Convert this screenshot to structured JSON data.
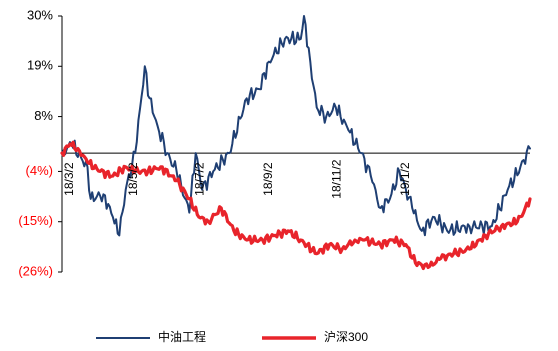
{
  "chart_data": {
    "type": "line",
    "title": "",
    "xlabel": "",
    "ylabel": "",
    "colors": {
      "positive_tick": "#000000",
      "negative_tick": "#ff0000",
      "axis": "#000000"
    },
    "y_ticks": [
      {
        "value": 30,
        "label": "30%",
        "negative": false
      },
      {
        "value": 19,
        "label": "19%",
        "negative": false
      },
      {
        "value": 8,
        "label": "8%",
        "negative": false
      },
      {
        "value": -4,
        "label": "(4%)",
        "negative": true
      },
      {
        "value": -15,
        "label": "(15%)",
        "negative": true
      },
      {
        "value": -26,
        "label": "(26%)",
        "negative": true
      }
    ],
    "ylim": [
      -26,
      30
    ],
    "xlim": [
      0,
      294
    ],
    "reference_line": 0,
    "x_ticks": [
      {
        "index": 0,
        "label": "18/3/2"
      },
      {
        "index": 40,
        "label": "18/5/2"
      },
      {
        "index": 82,
        "label": "18/7/2"
      },
      {
        "index": 125,
        "label": "18/9/2"
      },
      {
        "index": 168,
        "label": "18/11/2"
      },
      {
        "index": 211,
        "label": "19/1/2"
      }
    ],
    "legend": [
      {
        "name": "中油工程",
        "color": "#1f3f73"
      },
      {
        "name": "沪深300",
        "color": "#e8242b"
      }
    ],
    "series": [
      {
        "name": "中油工程",
        "color": "#1f3f73",
        "keypoints": [
          [
            0,
            0
          ],
          [
            6,
            2
          ],
          [
            12,
            -1
          ],
          [
            16,
            -3
          ],
          [
            18,
            -10
          ],
          [
            26,
            -9
          ],
          [
            32,
            -14
          ],
          [
            36,
            -18
          ],
          [
            40,
            -8
          ],
          [
            46,
            0
          ],
          [
            52,
            19
          ],
          [
            55,
            12
          ],
          [
            60,
            6
          ],
          [
            66,
            0
          ],
          [
            72,
            -4
          ],
          [
            80,
            -13
          ],
          [
            84,
            0
          ],
          [
            88,
            -8
          ],
          [
            95,
            -4
          ],
          [
            105,
            0
          ],
          [
            116,
            12
          ],
          [
            124,
            14
          ],
          [
            130,
            20
          ],
          [
            140,
            25
          ],
          [
            150,
            25
          ],
          [
            152,
            30
          ],
          [
            156,
            20
          ],
          [
            160,
            10
          ],
          [
            166,
            8
          ],
          [
            172,
            10
          ],
          [
            180,
            5
          ],
          [
            188,
            0
          ],
          [
            194,
            -5
          ],
          [
            200,
            -12
          ],
          [
            206,
            -10
          ],
          [
            212,
            -4
          ],
          [
            220,
            -12
          ],
          [
            226,
            -17
          ],
          [
            234,
            -14
          ],
          [
            242,
            -17
          ],
          [
            256,
            -16
          ],
          [
            270,
            -16
          ],
          [
            280,
            -8
          ],
          [
            288,
            -3
          ],
          [
            294,
            1
          ]
        ],
        "amplitude": 1.1
      },
      {
        "name": "沪深300",
        "color": "#e8242b",
        "keypoints": [
          [
            0,
            0
          ],
          [
            5,
            2
          ],
          [
            10,
            1
          ],
          [
            16,
            -2
          ],
          [
            24,
            -4
          ],
          [
            32,
            -5
          ],
          [
            40,
            -3
          ],
          [
            46,
            -4
          ],
          [
            54,
            -4
          ],
          [
            62,
            -3
          ],
          [
            72,
            -6
          ],
          [
            80,
            -10
          ],
          [
            86,
            -14
          ],
          [
            92,
            -15
          ],
          [
            100,
            -12
          ],
          [
            108,
            -17
          ],
          [
            116,
            -19
          ],
          [
            126,
            -19
          ],
          [
            134,
            -18
          ],
          [
            142,
            -17
          ],
          [
            150,
            -19
          ],
          [
            160,
            -22
          ],
          [
            168,
            -20
          ],
          [
            176,
            -21
          ],
          [
            184,
            -19
          ],
          [
            190,
            -19
          ],
          [
            200,
            -20
          ],
          [
            208,
            -19
          ],
          [
            216,
            -20
          ],
          [
            222,
            -24
          ],
          [
            230,
            -25
          ],
          [
            238,
            -23
          ],
          [
            246,
            -22
          ],
          [
            256,
            -21
          ],
          [
            266,
            -18
          ],
          [
            276,
            -16
          ],
          [
            286,
            -15
          ],
          [
            290,
            -13
          ],
          [
            294,
            -10
          ]
        ],
        "amplitude": 0.6
      }
    ]
  }
}
